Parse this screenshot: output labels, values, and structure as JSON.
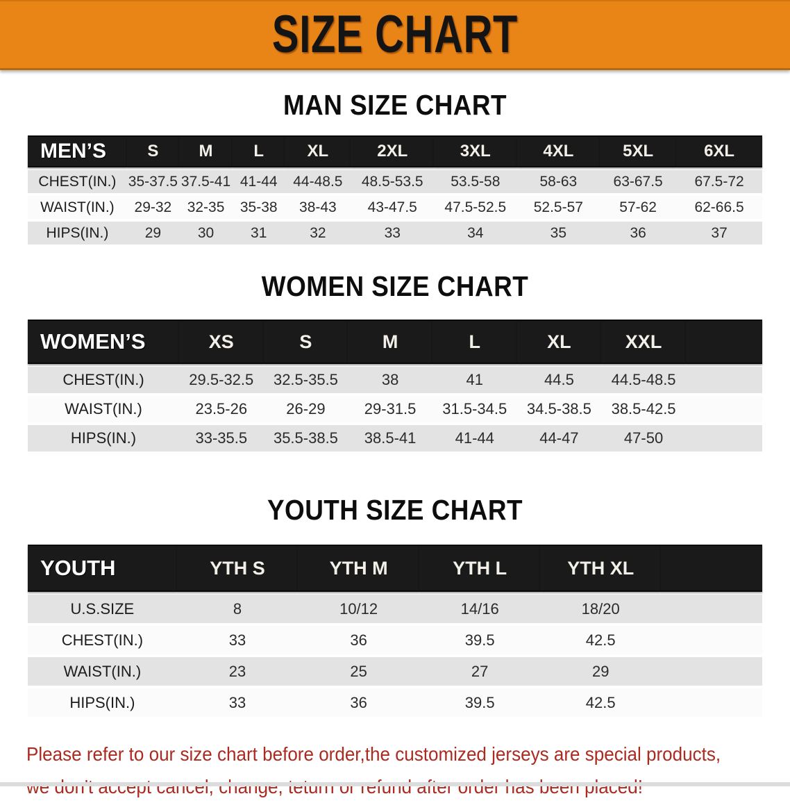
{
  "banner": {
    "title": "SIZE CHART",
    "bg_color": "#E98517",
    "text_color": "#141414"
  },
  "sections": [
    {
      "id": "men",
      "title": "MAN SIZE CHART",
      "header_label": "MEN’S",
      "columns": [
        "S",
        "M",
        "L",
        "XL",
        "2XL",
        "3XL",
        "4XL",
        "5XL",
        "6XL"
      ],
      "rows": [
        {
          "label": "CHEST(IN.)",
          "values": [
            "35-37.5",
            "37.5-41",
            "41-44",
            "44-48.5",
            "48.5-53.5",
            "53.5-58",
            "58-63",
            "63-67.5",
            "67.5-72"
          ]
        },
        {
          "label": "WAIST(IN.)",
          "values": [
            "29-32",
            "32-35",
            "35-38",
            "38-43",
            "43-47.5",
            "47.5-52.5",
            "52.5-57",
            "57-62",
            "62-66.5"
          ]
        },
        {
          "label": "HIPS(IN.)",
          "values": [
            "29",
            "30",
            "31",
            "32",
            "33",
            "34",
            "35",
            "36",
            "37"
          ]
        }
      ]
    },
    {
      "id": "women",
      "title": "WOMEN SIZE CHART",
      "header_label": "WOMEN’S",
      "columns": [
        "XS",
        "S",
        "M",
        "L",
        "XL",
        "XXL"
      ],
      "rows": [
        {
          "label": "CHEST(IN.)",
          "values": [
            "29.5-32.5",
            "32.5-35.5",
            "38",
            "41",
            "44.5",
            "44.5-48.5"
          ]
        },
        {
          "label": "WAIST(IN.)",
          "values": [
            "23.5-26",
            "26-29",
            "29-31.5",
            "31.5-34.5",
            "34.5-38.5",
            "38.5-42.5"
          ]
        },
        {
          "label": "HIPS(IN.)",
          "values": [
            "33-35.5",
            "35.5-38.5",
            "38.5-41",
            "41-44",
            "44-47",
            "47-50"
          ]
        }
      ]
    },
    {
      "id": "youth",
      "title": "YOUTH SIZE CHART",
      "header_label": "YOUTH",
      "columns": [
        "YTH S",
        "YTH M",
        "YTH L",
        "YTH XL"
      ],
      "rows": [
        {
          "label": "U.S.SIZE",
          "values": [
            "8",
            "10/12",
            "14/16",
            "18/20"
          ]
        },
        {
          "label": "CHEST(IN.)",
          "values": [
            "33",
            "36",
            "39.5",
            "42.5"
          ]
        },
        {
          "label": "WAIST(IN.)",
          "values": [
            "23",
            "25",
            "27",
            "29"
          ]
        },
        {
          "label": "HIPS(IN.)",
          "values": [
            "33",
            "36",
            "39.5",
            "42.5"
          ]
        }
      ]
    }
  ],
  "disclaimer": {
    "line1": "Please refer to our size chart before order,the customized jerseys are special products,",
    "line2": "we don't accept cancel, change, teturn or refund after order has been placed!",
    "color": "#AB2B21"
  }
}
